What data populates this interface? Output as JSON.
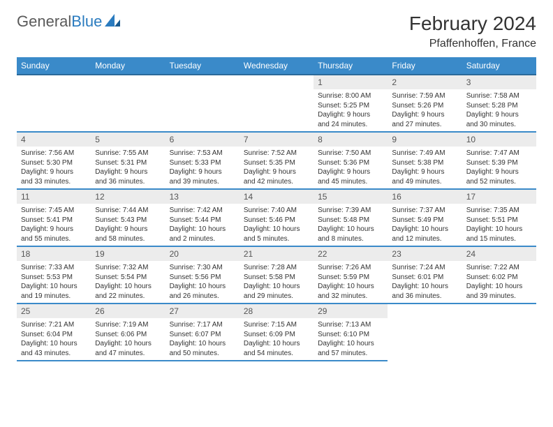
{
  "logo": {
    "part1": "General",
    "part2": "Blue"
  },
  "title": "February 2024",
  "location": "Pfaffenhoffen, France",
  "colors": {
    "header_bg": "#3a8ac9",
    "row_border": "#3a8ac9",
    "daynum_bg": "#ececec"
  },
  "columns": [
    "Sunday",
    "Monday",
    "Tuesday",
    "Wednesday",
    "Thursday",
    "Friday",
    "Saturday"
  ],
  "weeks": [
    [
      {
        "blank": true
      },
      {
        "blank": true
      },
      {
        "blank": true
      },
      {
        "blank": true
      },
      {
        "n": "1",
        "sr": "8:00 AM",
        "ss": "5:25 PM",
        "dl": "9 hours and 24 minutes."
      },
      {
        "n": "2",
        "sr": "7:59 AM",
        "ss": "5:26 PM",
        "dl": "9 hours and 27 minutes."
      },
      {
        "n": "3",
        "sr": "7:58 AM",
        "ss": "5:28 PM",
        "dl": "9 hours and 30 minutes."
      }
    ],
    [
      {
        "n": "4",
        "sr": "7:56 AM",
        "ss": "5:30 PM",
        "dl": "9 hours and 33 minutes."
      },
      {
        "n": "5",
        "sr": "7:55 AM",
        "ss": "5:31 PM",
        "dl": "9 hours and 36 minutes."
      },
      {
        "n": "6",
        "sr": "7:53 AM",
        "ss": "5:33 PM",
        "dl": "9 hours and 39 minutes."
      },
      {
        "n": "7",
        "sr": "7:52 AM",
        "ss": "5:35 PM",
        "dl": "9 hours and 42 minutes."
      },
      {
        "n": "8",
        "sr": "7:50 AM",
        "ss": "5:36 PM",
        "dl": "9 hours and 45 minutes."
      },
      {
        "n": "9",
        "sr": "7:49 AM",
        "ss": "5:38 PM",
        "dl": "9 hours and 49 minutes."
      },
      {
        "n": "10",
        "sr": "7:47 AM",
        "ss": "5:39 PM",
        "dl": "9 hours and 52 minutes."
      }
    ],
    [
      {
        "n": "11",
        "sr": "7:45 AM",
        "ss": "5:41 PM",
        "dl": "9 hours and 55 minutes."
      },
      {
        "n": "12",
        "sr": "7:44 AM",
        "ss": "5:43 PM",
        "dl": "9 hours and 58 minutes."
      },
      {
        "n": "13",
        "sr": "7:42 AM",
        "ss": "5:44 PM",
        "dl": "10 hours and 2 minutes."
      },
      {
        "n": "14",
        "sr": "7:40 AM",
        "ss": "5:46 PM",
        "dl": "10 hours and 5 minutes."
      },
      {
        "n": "15",
        "sr": "7:39 AM",
        "ss": "5:48 PM",
        "dl": "10 hours and 8 minutes."
      },
      {
        "n": "16",
        "sr": "7:37 AM",
        "ss": "5:49 PM",
        "dl": "10 hours and 12 minutes."
      },
      {
        "n": "17",
        "sr": "7:35 AM",
        "ss": "5:51 PM",
        "dl": "10 hours and 15 minutes."
      }
    ],
    [
      {
        "n": "18",
        "sr": "7:33 AM",
        "ss": "5:53 PM",
        "dl": "10 hours and 19 minutes."
      },
      {
        "n": "19",
        "sr": "7:32 AM",
        "ss": "5:54 PM",
        "dl": "10 hours and 22 minutes."
      },
      {
        "n": "20",
        "sr": "7:30 AM",
        "ss": "5:56 PM",
        "dl": "10 hours and 26 minutes."
      },
      {
        "n": "21",
        "sr": "7:28 AM",
        "ss": "5:58 PM",
        "dl": "10 hours and 29 minutes."
      },
      {
        "n": "22",
        "sr": "7:26 AM",
        "ss": "5:59 PM",
        "dl": "10 hours and 32 minutes."
      },
      {
        "n": "23",
        "sr": "7:24 AM",
        "ss": "6:01 PM",
        "dl": "10 hours and 36 minutes."
      },
      {
        "n": "24",
        "sr": "7:22 AM",
        "ss": "6:02 PM",
        "dl": "10 hours and 39 minutes."
      }
    ],
    [
      {
        "n": "25",
        "sr": "7:21 AM",
        "ss": "6:04 PM",
        "dl": "10 hours and 43 minutes."
      },
      {
        "n": "26",
        "sr": "7:19 AM",
        "ss": "6:06 PM",
        "dl": "10 hours and 47 minutes."
      },
      {
        "n": "27",
        "sr": "7:17 AM",
        "ss": "6:07 PM",
        "dl": "10 hours and 50 minutes."
      },
      {
        "n": "28",
        "sr": "7:15 AM",
        "ss": "6:09 PM",
        "dl": "10 hours and 54 minutes."
      },
      {
        "n": "29",
        "sr": "7:13 AM",
        "ss": "6:10 PM",
        "dl": "10 hours and 57 minutes."
      },
      {
        "blank": true,
        "noborder": true
      },
      {
        "blank": true,
        "noborder": true
      }
    ]
  ]
}
